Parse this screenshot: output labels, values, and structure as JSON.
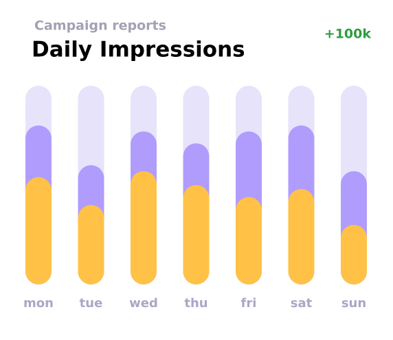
{
  "chart_data": {
    "type": "bar",
    "subtitle": "Campaign reports",
    "title": "Daily Impressions",
    "annotation": "+100k",
    "categories": [
      "mon",
      "tue",
      "wed",
      "thu",
      "fri",
      "sat",
      "sun"
    ],
    "series": [
      {
        "color": "#b09cfc",
        "values": [
          80,
          60,
          77,
          71,
          77,
          80,
          57
        ]
      },
      {
        "color": "#ffc246",
        "values": [
          54,
          40,
          57,
          50,
          44,
          48,
          30
        ]
      }
    ],
    "track_color": "#e6e3fa",
    "ylim": [
      0,
      100
    ]
  }
}
